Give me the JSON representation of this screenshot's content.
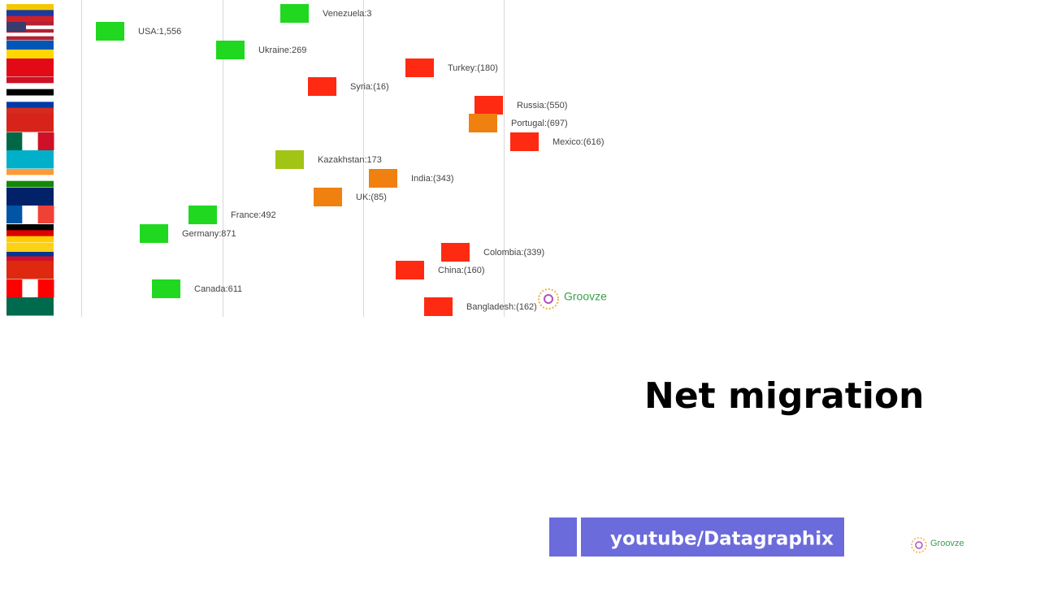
{
  "items": [
    {
      "label": "Venezuela:3"
    },
    {
      "label": "USA:1,556"
    },
    {
      "label": "Ukraine:269"
    },
    {
      "label": "Turkey:(180)"
    },
    {
      "label": "Syria:(16)"
    },
    {
      "label": "Russia:(550)"
    },
    {
      "label": "Portugal:(697)"
    },
    {
      "label": "Mexico:(616)"
    },
    {
      "label": "Kazakhstan:173"
    },
    {
      "label": "India:(343)"
    },
    {
      "label": "UK:(85)"
    },
    {
      "label": "France:492"
    },
    {
      "label": "Germany:871"
    },
    {
      "label": "Colombia:(339)"
    },
    {
      "label": "China:(160)"
    },
    {
      "label": "Canada:611"
    },
    {
      "label": "Bangladesh:(162)"
    }
  ],
  "watermark": "Groovze",
  "title": "Net migration",
  "banner": "youtube/Datagraphix"
}
